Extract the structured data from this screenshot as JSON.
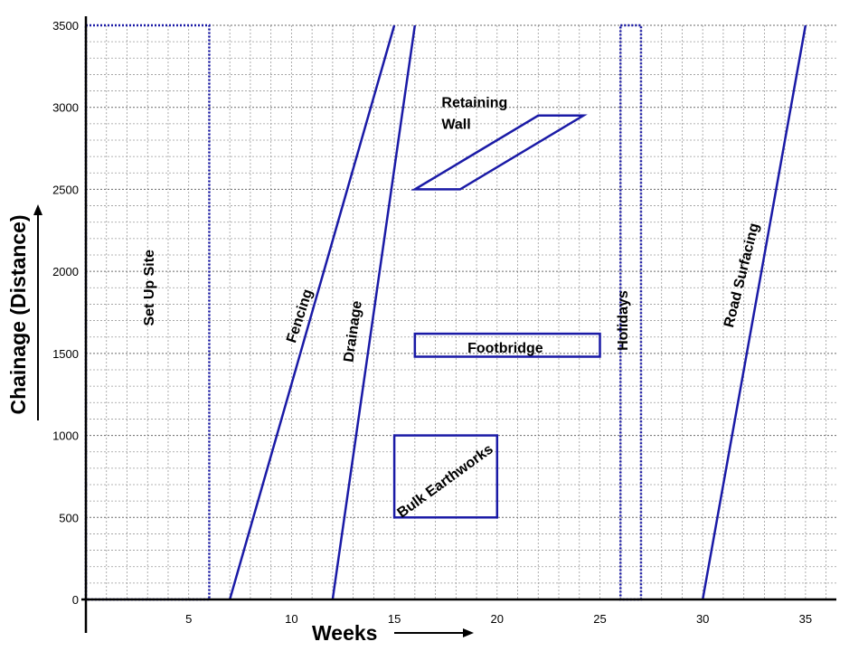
{
  "chart_data": {
    "type": "line",
    "xlabel": "Weeks",
    "ylabel": "Chainage (Distance)",
    "xlim": [
      0,
      36.5
    ],
    "ylim": [
      0,
      3500
    ],
    "x_ticks": [
      5,
      10,
      15,
      20,
      25,
      30,
      35
    ],
    "y_ticks": [
      0,
      500,
      1000,
      1500,
      2000,
      2500,
      3000,
      3500
    ],
    "grid": true,
    "grid_minor_x": 1,
    "grid_minor_y": 100,
    "colors": {
      "activity": "#1a1aa6",
      "grid": "#9a9a9a",
      "axis": "#000000"
    },
    "activities": [
      {
        "label": "Set Up Site",
        "shape": "rect",
        "style": "dotted",
        "x": [
          0,
          6
        ],
        "y": [
          0,
          3500
        ]
      },
      {
        "label": "Holidays",
        "shape": "rect",
        "style": "dotted",
        "x": [
          26,
          27
        ],
        "y": [
          0,
          3500
        ]
      },
      {
        "label": "Fencing",
        "shape": "line",
        "points": [
          [
            7,
            0
          ],
          [
            15,
            3500
          ]
        ]
      },
      {
        "label": "Drainage",
        "shape": "line",
        "points": [
          [
            12,
            0
          ],
          [
            16,
            3500
          ]
        ]
      },
      {
        "label": "Road Surfacing",
        "shape": "line",
        "points": [
          [
            30,
            0
          ],
          [
            35,
            3500
          ]
        ]
      },
      {
        "label": "Retaining Wall",
        "shape": "polygon",
        "points": [
          [
            16,
            2500
          ],
          [
            18.2,
            2500
          ],
          [
            24.2,
            2950
          ],
          [
            22,
            2950
          ]
        ]
      },
      {
        "label": "Footbridge",
        "shape": "rect",
        "x": [
          16,
          25
        ],
        "y": [
          1480,
          1620
        ]
      },
      {
        "label": "Bulk Earthworks",
        "shape": "rect",
        "x": [
          15,
          20
        ],
        "y": [
          500,
          1000
        ]
      }
    ]
  }
}
